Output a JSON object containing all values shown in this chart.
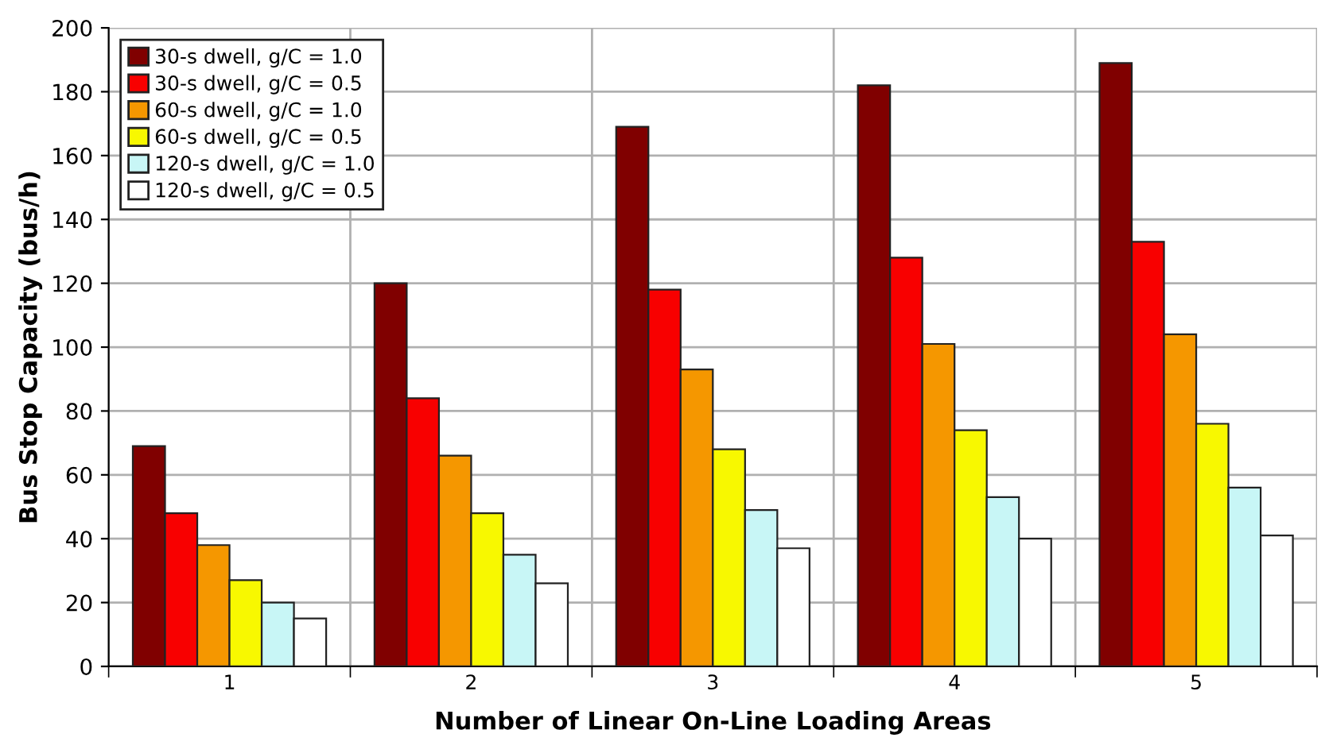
{
  "chart_data": {
    "type": "bar",
    "xlabel": "Number of Linear On-Line Loading Areas",
    "ylabel": "Bus Stop Capacity (bus/h)",
    "categories": [
      "1",
      "2",
      "3",
      "4",
      "5"
    ],
    "series": [
      {
        "name": "30-s dwell, g/C = 1.0",
        "color": "#800000",
        "values": [
          69,
          120,
          169,
          182,
          189
        ]
      },
      {
        "name": "30-s dwell, g/C = 0.5",
        "color": "#f80000",
        "values": [
          48,
          84,
          118,
          128,
          133
        ]
      },
      {
        "name": "60-s dwell, g/C = 1.0",
        "color": "#f59700",
        "values": [
          38,
          66,
          93,
          101,
          104
        ]
      },
      {
        "name": "60-s dwell, g/C = 0.5",
        "color": "#f8f800",
        "values": [
          27,
          48,
          68,
          74,
          76
        ]
      },
      {
        "name": "120-s dwell, g/C = 1.0",
        "color": "#c8f6f6",
        "values": [
          20,
          35,
          49,
          53,
          56
        ]
      },
      {
        "name": "120-s dwell, g/C = 0.5",
        "color": "#ffffff",
        "values": [
          15,
          26,
          37,
          40,
          41
        ]
      }
    ],
    "ylim": [
      0,
      200
    ],
    "yticks": [
      0,
      20,
      40,
      60,
      80,
      100,
      120,
      140,
      160,
      180,
      200
    ],
    "grid": true,
    "legend": "top left"
  }
}
